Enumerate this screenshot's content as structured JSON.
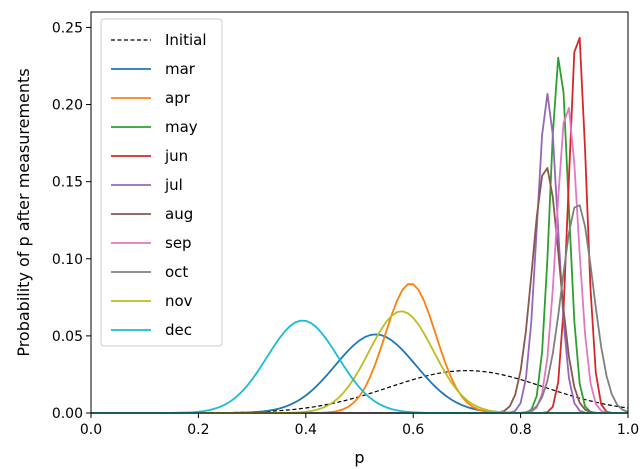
{
  "chart_data": {
    "type": "line",
    "title": "",
    "xlabel": "p",
    "ylabel": "Probability of p after measurements",
    "xlim": [
      0.0,
      1.0
    ],
    "ylim": [
      0.0,
      0.26
    ],
    "xticks": [
      "0.0",
      "0.2",
      "0.4",
      "0.6",
      "0.8",
      "1.0"
    ],
    "yticks": [
      "0.00",
      "0.05",
      "0.10",
      "0.15",
      "0.20",
      "0.25"
    ],
    "grid": false,
    "legend_position": "top-left",
    "series": [
      {
        "name": "Initial",
        "color": "#000000",
        "style": "dashed",
        "dist": "gauss",
        "mu": 0.7,
        "sigma": 0.145,
        "peak": 0.0275
      },
      {
        "name": "mar",
        "color": "#1f77b4",
        "style": "solid",
        "dist": "gauss",
        "mu": 0.53,
        "sigma": 0.075,
        "peak": 0.051
      },
      {
        "name": "apr",
        "color": "#ff7f0e",
        "style": "solid",
        "dist": "gauss",
        "mu": 0.595,
        "sigma": 0.047,
        "peak": 0.084
      },
      {
        "name": "may",
        "color": "#2ca02c",
        "style": "solid",
        "dist": "gauss",
        "mu": 0.872,
        "sigma": 0.017,
        "peak": 0.232
      },
      {
        "name": "jun",
        "color": "#d62728",
        "style": "solid",
        "dist": "gauss",
        "mu": 0.906,
        "sigma": 0.016,
        "peak": 0.251
      },
      {
        "name": "jul",
        "color": "#9467bd",
        "style": "solid",
        "dist": "gauss",
        "mu": 0.85,
        "sigma": 0.019,
        "peak": 0.207
      },
      {
        "name": "aug",
        "color": "#8c564b",
        "style": "solid",
        "dist": "gauss",
        "mu": 0.847,
        "sigma": 0.025,
        "peak": 0.16
      },
      {
        "name": "sep",
        "color": "#e377c2",
        "style": "solid",
        "dist": "gauss",
        "mu": 0.887,
        "sigma": 0.02,
        "peak": 0.2
      },
      {
        "name": "oct",
        "color": "#7f7f7f",
        "style": "solid",
        "dist": "gauss",
        "mu": 0.906,
        "sigma": 0.029,
        "peak": 0.136
      },
      {
        "name": "nov",
        "color": "#bcbd22",
        "style": "solid",
        "dist": "gauss",
        "mu": 0.578,
        "sigma": 0.06,
        "peak": 0.066
      },
      {
        "name": "dec",
        "color": "#17becf",
        "style": "solid",
        "dist": "gauss",
        "mu": 0.394,
        "sigma": 0.066,
        "peak": 0.06
      }
    ]
  }
}
